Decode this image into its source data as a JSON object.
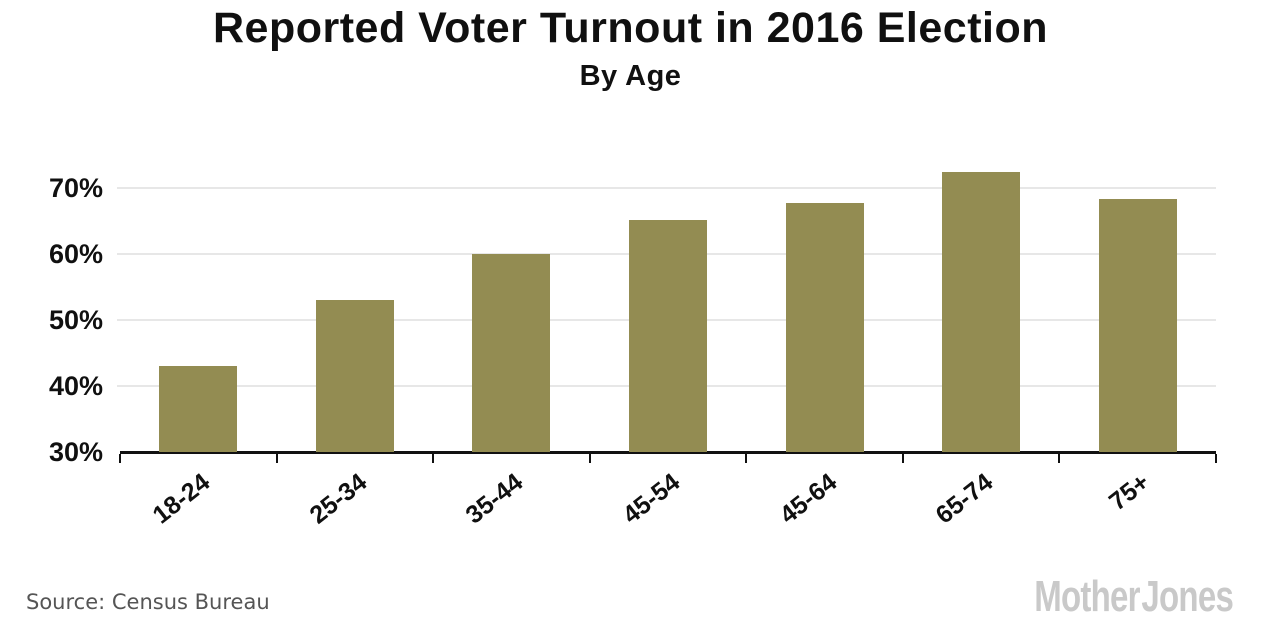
{
  "header": {
    "title": "Reported Voter Turnout in 2016 Election",
    "subtitle": "By Age"
  },
  "footer": {
    "source": "Source: Census Bureau",
    "logo": "Mother Jones"
  },
  "colors": {
    "bar": "#938c52",
    "gridline": "#e7e7e7",
    "axis": "#111111",
    "text": "#101010",
    "source_text": "#555555",
    "logo_gray": "#c9c9c9",
    "background": "#ffffff"
  },
  "chart_data": {
    "type": "bar",
    "title": "Reported Voter Turnout in 2016 Election",
    "subtitle": "By Age",
    "categories": [
      "18-24",
      "25-34",
      "35-44",
      "45-54",
      "45-64",
      "65-74",
      "75+"
    ],
    "values": [
      43,
      53,
      60,
      65.2,
      67.7,
      72.4,
      68.3
    ],
    "xlabel": "",
    "ylabel": "",
    "ylim": [
      30,
      75
    ],
    "yticks": [
      30,
      40,
      50,
      60,
      70
    ],
    "ytick_labels": [
      "30%",
      "40%",
      "50%",
      "60%",
      "70%"
    ],
    "grid": "horizontal",
    "legend": "none",
    "bar_color": "#938c52",
    "xtick_rotation_deg": -38,
    "source": "Source: Census Bureau",
    "brand": "Mother Jones"
  }
}
